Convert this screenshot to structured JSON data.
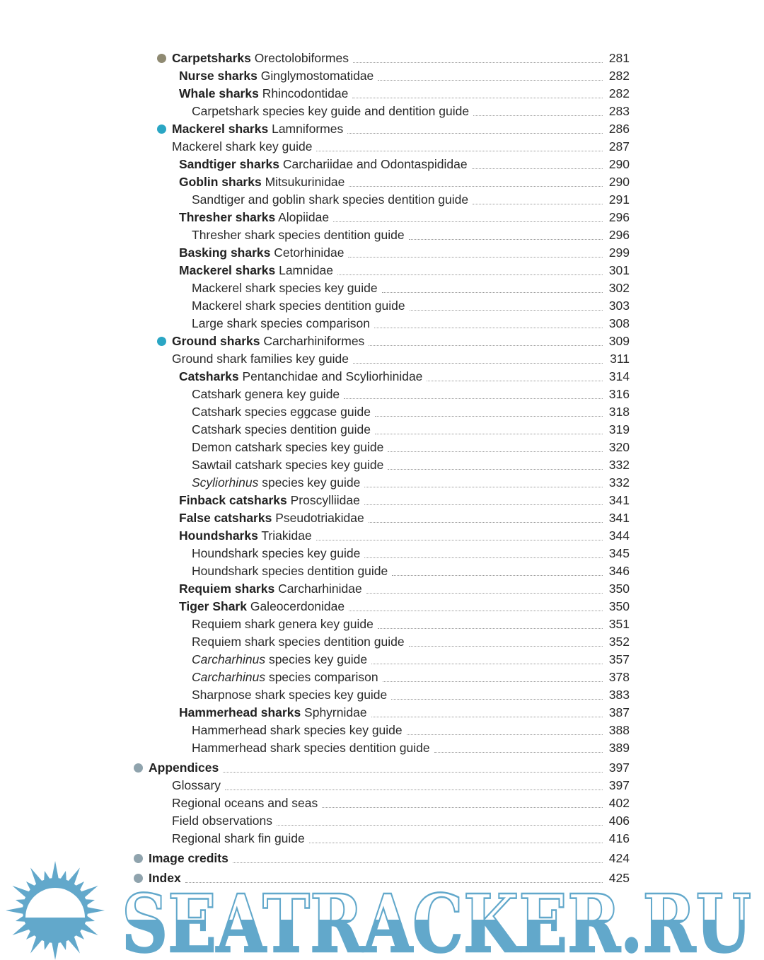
{
  "colors": {
    "carpet": "#8f8a72",
    "teal": "#2aa6c4",
    "grey": "#8fa3ad",
    "watermark": "#62a8cb"
  },
  "entries": [
    {
      "lv": 0,
      "dot": "carpet",
      "bold": "Carpetsharks",
      "text": " Orectolobiformes",
      "page": "281"
    },
    {
      "lv": 2,
      "bold": "Nurse sharks",
      "text": " Ginglymostomatidae",
      "page": "282"
    },
    {
      "lv": 2,
      "bold": "Whale sharks",
      "text": " Rhincodontidae",
      "page": "282"
    },
    {
      "lv": 3,
      "text": "Carpetshark species key guide and dentition guide",
      "page": "283"
    },
    {
      "lv": 0,
      "dot": "teal",
      "bold": "Mackerel sharks",
      "text": " Lamniformes",
      "page": "286"
    },
    {
      "lv": 1,
      "text": "Mackerel shark key guide",
      "page": "287"
    },
    {
      "lv": 2,
      "bold": "Sandtiger sharks",
      "text": " Carchariidae and Odontaspididae",
      "page": "290"
    },
    {
      "lv": 2,
      "bold": "Goblin sharks",
      "text": " Mitsukurinidae",
      "page": "290"
    },
    {
      "lv": 3,
      "text": "Sandtiger and goblin shark species dentition guide",
      "page": "291"
    },
    {
      "lv": 2,
      "bold": "Thresher sharks",
      "text": " Alopiidae",
      "page": "296"
    },
    {
      "lv": 3,
      "text": "Thresher shark species dentition guide",
      "page": "296"
    },
    {
      "lv": 2,
      "bold": "Basking sharks",
      "text": " Cetorhinidae",
      "page": "299"
    },
    {
      "lv": 2,
      "bold": "Mackerel sharks",
      "text": " Lamnidae",
      "page": "301"
    },
    {
      "lv": 3,
      "text": "Mackerel shark species key guide",
      "page": "302"
    },
    {
      "lv": 3,
      "text": "Mackerel shark species dentition guide",
      "page": "303"
    },
    {
      "lv": 3,
      "text": "Large shark species comparison",
      "page": "308"
    },
    {
      "lv": 0,
      "dot": "teal",
      "bold": "Ground sharks",
      "text": " Carcharhiniformes",
      "page": "309"
    },
    {
      "lv": 1,
      "text": "Ground shark families key guide",
      "page": "311"
    },
    {
      "lv": 2,
      "bold": "Catsharks",
      "text": " Pentanchidae and Scyliorhinidae",
      "page": "314"
    },
    {
      "lv": 3,
      "text": "Catshark genera key guide",
      "page": "316"
    },
    {
      "lv": 3,
      "text": "Catshark species eggcase guide",
      "page": "318"
    },
    {
      "lv": 3,
      "text": "Catshark species dentition guide",
      "page": "319"
    },
    {
      "lv": 3,
      "text": "Demon catshark species key guide",
      "page": "320"
    },
    {
      "lv": 3,
      "text": "Sawtail catshark species key guide",
      "page": "332"
    },
    {
      "lv": 3,
      "italic": "Scyliorhinus",
      "text": " species key guide",
      "page": "332"
    },
    {
      "lv": 2,
      "bold": "Finback catsharks",
      "text": " Proscylliidae",
      "page": "341"
    },
    {
      "lv": 2,
      "bold": "False catsharks",
      "text": " Pseudotriakidae",
      "page": "341"
    },
    {
      "lv": 2,
      "bold": "Houndsharks",
      "text": " Triakidae",
      "page": "344"
    },
    {
      "lv": 3,
      "text": "Houndshark species key guide",
      "page": "345"
    },
    {
      "lv": 3,
      "text": "Houndshark species dentition guide",
      "page": "346"
    },
    {
      "lv": 2,
      "bold": "Requiem sharks",
      "text": " Carcharhinidae",
      "page": "350"
    },
    {
      "lv": 2,
      "bold": "Tiger Shark",
      "text": " Galeocerdonidae",
      "page": "350"
    },
    {
      "lv": 3,
      "text": "Requiem shark genera key guide",
      "page": "351"
    },
    {
      "lv": 3,
      "text": "Requiem shark species dentition guide",
      "page": "352"
    },
    {
      "lv": 3,
      "italic": "Carcharhinus",
      "text": " species key guide",
      "page": "357"
    },
    {
      "lv": 3,
      "italic": "Carcharhinus",
      "text": " species comparison",
      "page": "378"
    },
    {
      "lv": 3,
      "text": "Sharpnose shark species key guide",
      "page": "383"
    },
    {
      "lv": 2,
      "bold": "Hammerhead sharks",
      "text": " Sphyrnidae",
      "page": "387"
    },
    {
      "lv": 3,
      "text": "Hammerhead shark species key guide",
      "page": "388"
    },
    {
      "lv": 3,
      "text": "Hammerhead shark species dentition guide",
      "page": "389"
    },
    {
      "lv": -1,
      "dot": "grey",
      "bold": "Appendices",
      "text": "",
      "page": "397"
    },
    {
      "lv": 1,
      "text": "Glossary",
      "page": "397"
    },
    {
      "lv": 1,
      "text": "Regional oceans and seas",
      "page": "402"
    },
    {
      "lv": 1,
      "text": "Field observations",
      "page": "406"
    },
    {
      "lv": 1,
      "text": "Regional shark fin guide",
      "page": "416"
    },
    {
      "lv": -1,
      "dot": "grey",
      "bold": "Image credits",
      "text": "",
      "page": "424"
    },
    {
      "lv": -1,
      "dot": "grey",
      "bold": "Index",
      "text": "",
      "page": "425"
    }
  ],
  "watermark": {
    "text": "SEATRACKER.RU"
  }
}
